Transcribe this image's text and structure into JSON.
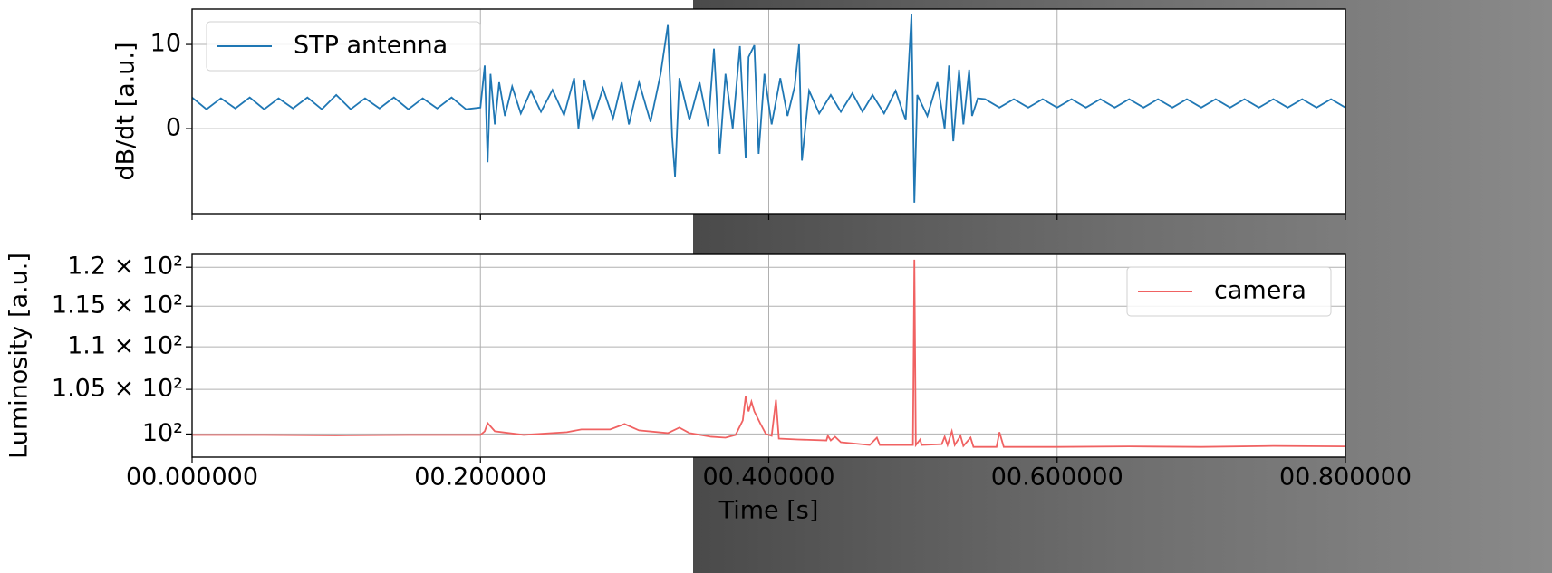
{
  "chart_data": [
    {
      "type": "line",
      "ylabel": "dB/dt [a.u.]",
      "ylabel_color": "#1a1acc",
      "grid": true,
      "legend": "upper left",
      "xlim": [
        0,
        0.8
      ],
      "xticks": [
        0,
        0.2,
        0.4,
        0.6,
        0.8
      ],
      "ylim": [
        -10.1,
        14.2
      ],
      "yticks": [
        0,
        10
      ],
      "x": [
        0,
        0.01,
        0.02,
        0.03,
        0.04,
        0.05,
        0.06,
        0.07,
        0.08,
        0.09,
        0.1,
        0.11,
        0.12,
        0.13,
        0.14,
        0.15,
        0.16,
        0.17,
        0.18,
        0.19,
        0.2,
        0.203,
        0.205,
        0.207,
        0.21,
        0.213,
        0.217,
        0.222,
        0.228,
        0.235,
        0.242,
        0.25,
        0.258,
        0.265,
        0.268,
        0.272,
        0.278,
        0.285,
        0.292,
        0.298,
        0.303,
        0.31,
        0.318,
        0.325,
        0.33,
        0.333,
        0.335,
        0.338,
        0.345,
        0.352,
        0.358,
        0.362,
        0.366,
        0.37,
        0.375,
        0.38,
        0.384,
        0.386,
        0.39,
        0.393,
        0.397,
        0.402,
        0.408,
        0.413,
        0.418,
        0.421,
        0.423,
        0.428,
        0.435,
        0.443,
        0.45,
        0.458,
        0.465,
        0.472,
        0.48,
        0.488,
        0.495,
        0.499,
        0.501,
        0.503,
        0.51,
        0.517,
        0.522,
        0.525,
        0.528,
        0.532,
        0.535,
        0.539,
        0.541,
        0.545,
        0.55,
        0.56,
        0.57,
        0.58,
        0.59,
        0.6,
        0.61,
        0.62,
        0.63,
        0.64,
        0.65,
        0.66,
        0.67,
        0.68,
        0.69,
        0.7,
        0.71,
        0.72,
        0.73,
        0.74,
        0.75,
        0.76,
        0.77,
        0.78,
        0.79,
        0.8
      ],
      "series": [
        {
          "name": "STP antenna",
          "color": "#1f77b4",
          "values": [
            3.7,
            2.3,
            3.6,
            2.4,
            3.7,
            2.3,
            3.6,
            2.4,
            3.7,
            2.3,
            4.0,
            2.3,
            3.6,
            2.4,
            3.7,
            2.3,
            3.6,
            2.4,
            3.7,
            2.3,
            2.5,
            7.5,
            -4,
            6.5,
            0.5,
            5.5,
            1.5,
            5,
            1.8,
            4.5,
            2,
            4.6,
            1.6,
            6,
            0,
            5.8,
            1,
            4.8,
            1.2,
            5.5,
            0.5,
            5.5,
            0.8,
            6.5,
            12.3,
            -1,
            -5.7,
            6,
            1,
            5.5,
            0.3,
            9.5,
            -3,
            6.5,
            0,
            9.8,
            -3.5,
            8.5,
            9.9,
            -3,
            6.5,
            0.5,
            6,
            1.5,
            5,
            10,
            -3.8,
            4.5,
            1.8,
            4,
            2,
            4.2,
            2,
            4,
            1.8,
            4.5,
            1,
            13.6,
            -8.8,
            4,
            1.5,
            5.5,
            0,
            7.5,
            -1.5,
            7,
            0.5,
            7,
            1.5,
            3.6,
            3.5,
            2.5,
            3.5,
            2.5,
            3.5,
            2.5,
            3.5,
            2.5,
            3.5,
            2.5,
            3.5,
            2.5,
            3.5,
            2.5,
            3.5,
            2.5,
            3.5,
            2.5,
            3.5,
            2.5,
            3.5,
            2.5,
            3.5,
            2.5,
            3.5,
            2.5
          ]
        }
      ]
    },
    {
      "type": "line",
      "ylabel": "Luminosity [a.u.]",
      "ylabel_color": "#d62728",
      "xlabel": "Time [s]",
      "grid": true,
      "legend": "upper right",
      "yscale": "log",
      "xlim": [
        0,
        0.8
      ],
      "xticks": [
        {
          "value": 0,
          "label": "00.000000"
        },
        {
          "value": 0.2,
          "label": "00.200000"
        },
        {
          "value": 0.4,
          "label": "00.400000"
        },
        {
          "value": 0.6,
          "label": "00.600000"
        },
        {
          "value": 0.8,
          "label": "00.800000"
        }
      ],
      "ylim": [
        97.5,
        121.7
      ],
      "yticks": [
        {
          "value": 100,
          "label": "10²"
        },
        {
          "value": 105,
          "label": "1.05 × 10²"
        },
        {
          "value": 110,
          "label": "1.1 × 10²"
        },
        {
          "value": 115,
          "label": "1.15 × 10²"
        },
        {
          "value": 120,
          "label": "1.2 × 10²"
        }
      ],
      "x": [
        0,
        0.05,
        0.1,
        0.15,
        0.2,
        0.203,
        0.205,
        0.21,
        0.23,
        0.26,
        0.27,
        0.29,
        0.3,
        0.31,
        0.33,
        0.338,
        0.345,
        0.36,
        0.37,
        0.377,
        0.382,
        0.384,
        0.386,
        0.388,
        0.39,
        0.394,
        0.398,
        0.402,
        0.405,
        0.407,
        0.42,
        0.44,
        0.441,
        0.443,
        0.446,
        0.45,
        0.47,
        0.475,
        0.477,
        0.5,
        0.501,
        0.502,
        0.505,
        0.506,
        0.52,
        0.522,
        0.524,
        0.527,
        0.529,
        0.533,
        0.535,
        0.54,
        0.542,
        0.558,
        0.56,
        0.563,
        0.6,
        0.65,
        0.7,
        0.75,
        0.8
      ],
      "series": [
        {
          "name": "camera",
          "color": "#f06262",
          "values": [
            99.9,
            99.9,
            99.85,
            99.9,
            99.9,
            100.3,
            101.2,
            100.3,
            99.9,
            100.2,
            100.5,
            100.5,
            101.1,
            100.4,
            100.1,
            100.7,
            100.1,
            99.7,
            99.6,
            99.9,
            101.5,
            104.2,
            102.5,
            103.6,
            102.5,
            101.2,
            100,
            99.8,
            103.8,
            99.5,
            99.4,
            99.3,
            99.8,
            99.3,
            99.7,
            99.1,
            98.8,
            99.6,
            98.8,
            98.8,
            121,
            98.8,
            99.4,
            98.8,
            98.9,
            99.7,
            98.8,
            100.3,
            98.8,
            99.8,
            98.7,
            99.6,
            98.6,
            98.6,
            100.2,
            98.6,
            98.6,
            98.65,
            98.6,
            98.7,
            98.65
          ]
        }
      ]
    }
  ]
}
